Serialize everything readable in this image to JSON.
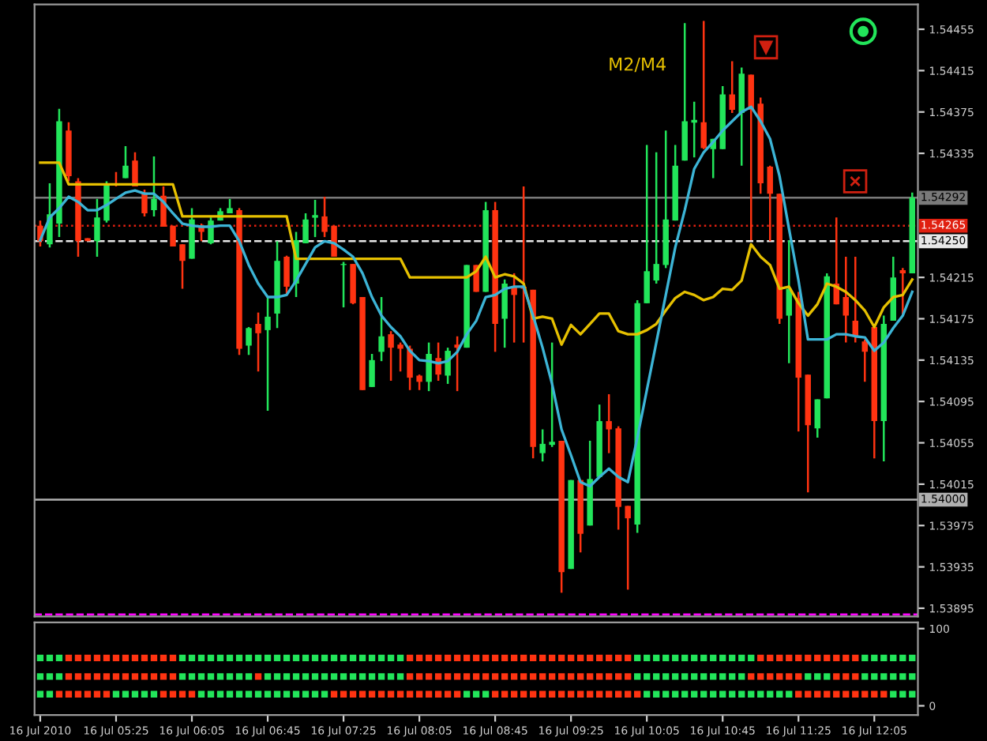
{
  "chart_data": [
    {
      "type": "candlestick",
      "tick_labels": "y",
      "legend": false,
      "grid": false,
      "x": [
        "2010-07-16T04:45",
        "2010-07-16T04:50",
        "2010-07-16T04:55",
        "2010-07-16T05:00",
        "2010-07-16T05:05",
        "2010-07-16T05:10",
        "2010-07-16T05:15",
        "2010-07-16T05:20",
        "2010-07-16T05:25",
        "2010-07-16T05:30",
        "2010-07-16T05:35",
        "2010-07-16T05:40",
        "2010-07-16T05:45",
        "2010-07-16T05:50",
        "2010-07-16T05:55",
        "2010-07-16T06:00",
        "2010-07-16T06:05",
        "2010-07-16T06:10",
        "2010-07-16T06:15",
        "2010-07-16T06:20",
        "2010-07-16T06:25",
        "2010-07-16T06:30",
        "2010-07-16T06:35",
        "2010-07-16T06:40",
        "2010-07-16T06:45",
        "2010-07-16T06:50",
        "2010-07-16T06:55",
        "2010-07-16T07:00",
        "2010-07-16T07:05",
        "2010-07-16T07:10",
        "2010-07-16T07:15",
        "2010-07-16T07:20",
        "2010-07-16T07:25",
        "2010-07-16T07:30",
        "2010-07-16T07:35",
        "2010-07-16T07:40",
        "2010-07-16T07:45",
        "2010-07-16T07:50",
        "2010-07-16T07:55",
        "2010-07-16T08:00",
        "2010-07-16T08:05",
        "2010-07-16T08:10",
        "2010-07-16T08:15",
        "2010-07-16T08:20",
        "2010-07-16T08:25",
        "2010-07-16T08:30",
        "2010-07-16T08:35",
        "2010-07-16T08:40",
        "2010-07-16T08:45",
        "2010-07-16T08:50",
        "2010-07-16T08:55",
        "2010-07-16T09:00",
        "2010-07-16T09:05",
        "2010-07-16T09:10",
        "2010-07-16T09:15",
        "2010-07-16T09:20",
        "2010-07-16T09:25",
        "2010-07-16T09:30",
        "2010-07-16T09:35",
        "2010-07-16T09:40",
        "2010-07-16T09:45",
        "2010-07-16T09:50",
        "2010-07-16T09:55",
        "2010-07-16T10:00",
        "2010-07-16T10:05",
        "2010-07-16T10:10",
        "2010-07-16T10:15",
        "2010-07-16T10:20",
        "2010-07-16T10:25",
        "2010-07-16T10:30",
        "2010-07-16T10:35",
        "2010-07-16T10:40",
        "2010-07-16T10:45",
        "2010-07-16T10:50",
        "2010-07-16T10:55",
        "2010-07-16T11:00",
        "2010-07-16T11:05",
        "2010-07-16T11:10",
        "2010-07-16T11:15",
        "2010-07-16T11:20",
        "2010-07-16T11:25",
        "2010-07-16T11:30",
        "2010-07-16T11:35",
        "2010-07-16T11:40",
        "2010-07-16T11:45",
        "2010-07-16T11:50",
        "2010-07-16T11:55",
        "2010-07-16T12:00",
        "2010-07-16T12:05",
        "2010-07-16T12:10",
        "2010-07-16T12:15",
        "2010-07-16T12:20",
        "2010-07-16T12:25"
      ],
      "ohlc": [
        [
          1.54265,
          1.5427,
          1.54245,
          1.5425
        ],
        [
          1.54247,
          1.54306,
          1.54244,
          1.54276
        ],
        [
          1.54267,
          1.54378,
          1.54254,
          1.54366
        ],
        [
          1.54357,
          1.54365,
          1.54308,
          1.54313
        ],
        [
          1.54308,
          1.54311,
          1.54235,
          1.5425
        ],
        [
          1.54253,
          1.54253,
          1.5425,
          1.5425
        ],
        [
          1.5425,
          1.54291,
          1.54235,
          1.54273
        ],
        [
          1.5427,
          1.54308,
          1.54268,
          1.54305
        ],
        [
          1.54306,
          1.54317,
          1.54303,
          1.54305
        ],
        [
          1.54311,
          1.54342,
          1.54311,
          1.54323
        ],
        [
          1.54328,
          1.54336,
          1.54303,
          1.54303
        ],
        [
          1.54297,
          1.543,
          1.54274,
          1.54277
        ],
        [
          1.5428,
          1.54332,
          1.54274,
          1.54291
        ],
        [
          1.54294,
          1.54303,
          1.54264,
          1.54264
        ],
        [
          1.54265,
          1.54265,
          1.54245,
          1.54245
        ],
        [
          1.54247,
          1.54247,
          1.54204,
          1.54231
        ],
        [
          1.54233,
          1.54282,
          1.54233,
          1.54271
        ],
        [
          1.54265,
          1.54267,
          1.5425,
          1.54259
        ],
        [
          1.54248,
          1.54273,
          1.54247,
          1.5427
        ],
        [
          1.5427,
          1.54282,
          1.5427,
          1.54279
        ],
        [
          1.54277,
          1.54291,
          1.54277,
          1.54282
        ],
        [
          1.5428,
          1.54282,
          1.5414,
          1.54146
        ],
        [
          1.54149,
          1.54167,
          1.5414,
          1.54166
        ],
        [
          1.5417,
          1.54181,
          1.54124,
          1.54161
        ],
        [
          1.54164,
          1.54196,
          1.54086,
          1.54177
        ],
        [
          1.5418,
          1.5425,
          1.54166,
          1.54231
        ],
        [
          1.54235,
          1.54236,
          1.54198,
          1.54206
        ],
        [
          1.54209,
          1.54259,
          1.54196,
          1.54251
        ],
        [
          1.54248,
          1.54277,
          1.54248,
          1.54271
        ],
        [
          1.54274,
          1.5429,
          1.54254,
          1.54274
        ],
        [
          1.54274,
          1.54293,
          1.54254,
          1.54259
        ],
        [
          1.54265,
          1.54265,
          1.54235,
          1.54235
        ],
        [
          1.54227,
          1.5423,
          1.54186,
          1.54228
        ],
        [
          1.54228,
          1.54228,
          1.54189,
          1.5419
        ],
        [
          1.54196,
          1.54196,
          1.54106,
          1.54106
        ],
        [
          1.54109,
          1.54141,
          1.54109,
          1.54135
        ],
        [
          1.54143,
          1.54196,
          1.54134,
          1.54158
        ],
        [
          1.5416,
          1.54163,
          1.54115,
          1.54147
        ],
        [
          1.5415,
          1.54152,
          1.54124,
          1.54146
        ],
        [
          1.54146,
          1.54149,
          1.54106,
          1.54118
        ],
        [
          1.5412,
          1.54121,
          1.54106,
          1.54114
        ],
        [
          1.54114,
          1.54152,
          1.54105,
          1.54141
        ],
        [
          1.54137,
          1.54152,
          1.54115,
          1.54121
        ],
        [
          1.5412,
          1.54147,
          1.54112,
          1.54144
        ],
        [
          1.5415,
          1.54158,
          1.54105,
          1.54147
        ],
        [
          1.54147,
          1.54227,
          1.54147,
          1.54227
        ],
        [
          1.54227,
          1.54227,
          1.54201,
          1.54201
        ],
        [
          1.54201,
          1.54288,
          1.54201,
          1.5428
        ],
        [
          1.5428,
          1.54288,
          1.54143,
          1.5417
        ],
        [
          1.54175,
          1.54213,
          1.54147,
          1.54209
        ],
        [
          1.54206,
          1.54219,
          1.54152,
          1.54198
        ],
        [
          1.54206,
          1.54303,
          1.54152,
          1.54204
        ],
        [
          1.54203,
          1.54203,
          1.5404,
          1.54051
        ],
        [
          1.54045,
          1.54068,
          1.54037,
          1.54054
        ],
        [
          1.54053,
          1.54152,
          1.54051,
          1.54056
        ],
        [
          1.54057,
          1.54057,
          1.5391,
          1.5393
        ],
        [
          1.53933,
          1.54019,
          1.53933,
          1.54019
        ],
        [
          1.54019,
          1.54019,
          1.53949,
          1.53967
        ],
        [
          1.53975,
          1.54057,
          1.53975,
          1.5402
        ],
        [
          1.54022,
          1.54092,
          1.54022,
          1.54076
        ],
        [
          1.54076,
          1.54102,
          1.54045,
          1.54068
        ],
        [
          1.54069,
          1.54071,
          1.53971,
          1.53993
        ],
        [
          1.53994,
          1.53994,
          1.53913,
          1.53982
        ],
        [
          1.53976,
          1.54193,
          1.53968,
          1.5419
        ],
        [
          1.5419,
          1.54343,
          1.5419,
          1.54221
        ],
        [
          1.54212,
          1.54336,
          1.54209,
          1.54228
        ],
        [
          1.54227,
          1.54357,
          1.54224,
          1.54271
        ],
        [
          1.5427,
          1.54343,
          1.5427,
          1.54323
        ],
        [
          1.54328,
          1.54461,
          1.54328,
          1.54366
        ],
        [
          1.54366,
          1.54385,
          1.54331,
          1.54366
        ],
        [
          1.54365,
          1.54463,
          1.54339,
          1.5434
        ],
        [
          1.54339,
          1.54349,
          1.54311,
          1.54349
        ],
        [
          1.54339,
          1.544,
          1.54339,
          1.54392
        ],
        [
          1.54392,
          1.54424,
          1.54374,
          1.54377
        ],
        [
          1.54374,
          1.54418,
          1.54323,
          1.54412
        ],
        [
          1.54411,
          1.54411,
          1.54251,
          1.54377
        ],
        [
          1.54383,
          1.54389,
          1.54296,
          1.54306
        ],
        [
          1.54322,
          1.54323,
          1.5425,
          1.54296
        ],
        [
          1.54296,
          1.54296,
          1.5417,
          1.54175
        ],
        [
          1.54178,
          1.54251,
          1.54132,
          1.54204
        ],
        [
          1.54195,
          1.54201,
          1.54066,
          1.54118
        ],
        [
          1.54121,
          1.54121,
          1.54007,
          1.54072
        ],
        [
          1.54069,
          1.54097,
          1.5406,
          1.54097
        ],
        [
          1.54098,
          1.54219,
          1.54098,
          1.54216
        ],
        [
          1.54209,
          1.54273,
          1.54189,
          1.54189
        ],
        [
          1.54196,
          1.54235,
          1.54152,
          1.54178
        ],
        [
          1.54173,
          1.54235,
          1.54152,
          1.54158
        ],
        [
          1.54153,
          1.54155,
          1.54114,
          1.54143
        ],
        [
          1.54167,
          1.5417,
          1.5404,
          1.54076
        ],
        [
          1.54076,
          1.54178,
          1.54037,
          1.5417
        ],
        [
          1.54173,
          1.54235,
          1.54173,
          1.54215
        ],
        [
          1.54222,
          1.54224,
          1.54178,
          1.54219
        ],
        [
          1.54219,
          1.54297,
          1.54219,
          1.54292
        ]
      ],
      "colors": [
        "#ff3311",
        "#22e55a",
        "#22e55a",
        "#ff3311",
        "#ff3311",
        "#ff3311",
        "#22e55a",
        "#22e55a",
        "#ff3311",
        "#22e55a",
        "#ff3311",
        "#ff3311",
        "#22e55a",
        "#ff3311",
        "#ff3311",
        "#ff3311",
        "#22e55a",
        "#ff3311",
        "#22e55a",
        "#22e55a",
        "#22e55a",
        "#ff3311",
        "#22e55a",
        "#ff3311",
        "#22e55a",
        "#22e55a",
        "#ff3311",
        "#22e55a",
        "#22e55a",
        "#22e55a",
        "#ff3311",
        "#ff3311",
        "#22e55a",
        "#ff3311",
        "#ff3311",
        "#22e55a",
        "#22e55a",
        "#ff3311",
        "#ff3311",
        "#ff3311",
        "#ff3311",
        "#22e55a",
        "#ff3311",
        "#22e55a",
        "#ff3311",
        "#22e55a",
        "#ff3311",
        "#22e55a",
        "#ff3311",
        "#22e55a",
        "#ff3311",
        "#ff3311",
        "#ff3311",
        "#22e55a",
        "#22e55a",
        "#ff3311",
        "#22e55a",
        "#ff3311",
        "#22e55a",
        "#22e55a",
        "#ff3311",
        "#ff3311",
        "#ff3311",
        "#22e55a",
        "#22e55a",
        "#22e55a",
        "#22e55a",
        "#22e55a",
        "#22e55a",
        "#22e55a",
        "#ff3311",
        "#22e55a",
        "#22e55a",
        "#ff3311",
        "#22e55a",
        "#ff3311",
        "#ff3311",
        "#ff3311",
        "#ff3311",
        "#22e55a",
        "#ff3311",
        "#ff3311",
        "#22e55a",
        "#22e55a",
        "#ff3311",
        "#ff3311",
        "#ff3311",
        "#ff3311",
        "#ff3311",
        "#22e55a",
        "#22e55a",
        "#ff3311",
        "#22e55a"
      ],
      "series": [
        {
          "type": "line",
          "name": "M2/M4",
          "color": "#e6c000",
          "values": [
            1.54326,
            1.54326,
            1.54326,
            1.54305,
            1.54305,
            1.54305,
            1.54305,
            1.54305,
            1.54305,
            1.54305,
            1.54305,
            1.54305,
            1.54305,
            1.54305,
            1.54305,
            1.54274,
            1.54274,
            1.54274,
            1.54274,
            1.54274,
            1.54274,
            1.54274,
            1.54274,
            1.54274,
            1.54274,
            1.54274,
            1.54274,
            1.54233,
            1.54233,
            1.54233,
            1.54233,
            1.54233,
            1.54233,
            1.54233,
            1.54233,
            1.54233,
            1.54233,
            1.54233,
            1.54233,
            1.54215,
            1.54215,
            1.54215,
            1.54215,
            1.54215,
            1.54215,
            1.54215,
            1.54221,
            1.54235,
            1.54215,
            1.54218,
            1.54216,
            1.54209,
            1.54175,
            1.54177,
            1.54175,
            1.5415,
            1.54169,
            1.5416,
            1.5417,
            1.5418,
            1.5418,
            1.54163,
            1.5416,
            1.5416,
            1.54164,
            1.5417,
            1.54183,
            1.54195,
            1.54201,
            1.54198,
            1.54193,
            1.54196,
            1.54204,
            1.54203,
            1.54212,
            1.54247,
            1.54235,
            1.54227,
            1.54204,
            1.54206,
            1.5419,
            1.54178,
            1.54189,
            1.54209,
            1.54206,
            1.54201,
            1.54193,
            1.54183,
            1.54167,
            1.54186,
            1.54196,
            1.54198,
            1.54213
          ]
        },
        {
          "type": "line",
          "color": "#3cb4d6",
          "values": [
            1.54251,
            1.54273,
            1.54282,
            1.54293,
            1.54288,
            1.5428,
            1.5428,
            1.54285,
            1.54291,
            1.54297,
            1.54299,
            1.54296,
            1.54296,
            1.54288,
            1.54277,
            1.54267,
            1.54265,
            1.54264,
            1.54264,
            1.54265,
            1.54265,
            1.5425,
            1.54227,
            1.54209,
            1.54196,
            1.54196,
            1.54198,
            1.54212,
            1.54228,
            1.54244,
            1.5425,
            1.54248,
            1.54242,
            1.54235,
            1.54219,
            1.54196,
            1.54178,
            1.54167,
            1.54158,
            1.54144,
            1.54135,
            1.54134,
            1.54132,
            1.54134,
            1.54143,
            1.5416,
            1.54173,
            1.54196,
            1.54198,
            1.54204,
            1.54206,
            1.54206,
            1.54178,
            1.54147,
            1.54112,
            1.54068,
            1.54043,
            1.54017,
            1.54013,
            1.54022,
            1.5403,
            1.54022,
            1.54017,
            1.5406,
            1.54106,
            1.54152,
            1.54198,
            1.54244,
            1.5428,
            1.5432,
            1.54336,
            1.54346,
            1.54357,
            1.54366,
            1.54375,
            1.5438,
            1.54366,
            1.54349,
            1.54313,
            1.54262,
            1.54212,
            1.54155,
            1.54155,
            1.54155,
            1.5416,
            1.5416,
            1.54158,
            1.54157,
            1.54144,
            1.54152,
            1.54166,
            1.54178,
            1.54201
          ]
        }
      ],
      "ref_lines": [
        {
          "axis": "y",
          "value": 1.54292,
          "label": "1.54292",
          "color": "#7a7a7a",
          "line_style": "solid"
        },
        {
          "axis": "y",
          "value": 1.54265,
          "label": "1.54265",
          "color": "#e02010",
          "line_style": "dotted"
        },
        {
          "axis": "y",
          "value": 1.5425,
          "label": "1.54250",
          "color": "#e8e8e8",
          "line_style": "dashed"
        },
        {
          "axis": "y",
          "value": 1.54,
          "label": "1.54000",
          "color": "#b0b0b0",
          "line_style": "solid"
        },
        {
          "axis": "y",
          "value": 1.53889,
          "color": "#ff00ff",
          "line_style": "dashed"
        }
      ],
      "xlim": [
        "2010-07-16T04:42",
        "2010-07-16T12:28"
      ],
      "ylim": [
        1.53887,
        1.54479
      ],
      "yticks": [
        1.54455,
        1.54415,
        1.54375,
        1.54335,
        1.54215,
        1.54175,
        1.54135,
        1.54095,
        1.54055,
        1.54015,
        1.53975,
        1.53935,
        1.53895
      ]
    },
    {
      "type": "scatter",
      "marker": "square",
      "legend": false,
      "grid": false,
      "xlim": [
        "2010-07-16T04:42",
        "2010-07-16T12:28"
      ],
      "xticks": [
        {
          "value": "2010-07-16T04:45",
          "label": "16 Jul 2010"
        },
        {
          "value": "2010-07-16T05:25",
          "label": "16 Jul 05:25"
        },
        {
          "value": "2010-07-16T06:05",
          "label": "16 Jul 06:05"
        },
        {
          "value": "2010-07-16T06:45",
          "label": "16 Jul 06:45"
        },
        {
          "value": "2010-07-16T07:25",
          "label": "16 Jul 07:25"
        },
        {
          "value": "2010-07-16T08:05",
          "label": "16 Jul 08:05"
        },
        {
          "value": "2010-07-16T08:45",
          "label": "16 Jul 08:45"
        },
        {
          "value": "2010-07-16T09:25",
          "label": "16 Jul 09:25"
        },
        {
          "value": "2010-07-16T10:05",
          "label": "16 Jul 10:05"
        },
        {
          "value": "2010-07-16T10:45",
          "label": "16 Jul 10:45"
        },
        {
          "value": "2010-07-16T11:25",
          "label": "16 Jul 11:25"
        },
        {
          "value": "2010-07-16T12:05",
          "label": "16 Jul 12:05"
        }
      ],
      "ylim": [
        -12,
        108
      ],
      "yticks": [
        0,
        100
      ],
      "x": [
        "2010-07-16T04:45",
        "2010-07-16T04:50",
        "2010-07-16T04:55",
        "2010-07-16T05:00",
        "2010-07-16T05:05",
        "2010-07-16T05:10",
        "2010-07-16T05:15",
        "2010-07-16T05:20",
        "2010-07-16T05:25",
        "2010-07-16T05:30",
        "2010-07-16T05:35",
        "2010-07-16T05:40",
        "2010-07-16T05:45",
        "2010-07-16T05:50",
        "2010-07-16T05:55",
        "2010-07-16T06:00",
        "2010-07-16T06:05",
        "2010-07-16T06:10",
        "2010-07-16T06:15",
        "2010-07-16T06:20",
        "2010-07-16T06:25",
        "2010-07-16T06:30",
        "2010-07-16T06:35",
        "2010-07-16T06:40",
        "2010-07-16T06:45",
        "2010-07-16T06:50",
        "2010-07-16T06:55",
        "2010-07-16T07:00",
        "2010-07-16T07:05",
        "2010-07-16T07:10",
        "2010-07-16T07:15",
        "2010-07-16T07:20",
        "2010-07-16T07:25",
        "2010-07-16T07:30",
        "2010-07-16T07:35",
        "2010-07-16T07:40",
        "2010-07-16T07:45",
        "2010-07-16T07:50",
        "2010-07-16T07:55",
        "2010-07-16T08:00",
        "2010-07-16T08:05",
        "2010-07-16T08:10",
        "2010-07-16T08:15",
        "2010-07-16T08:20",
        "2010-07-16T08:25",
        "2010-07-16T08:30",
        "2010-07-16T08:35",
        "2010-07-16T08:40",
        "2010-07-16T08:45",
        "2010-07-16T08:50",
        "2010-07-16T08:55",
        "2010-07-16T09:00",
        "2010-07-16T09:05",
        "2010-07-16T09:10",
        "2010-07-16T09:15",
        "2010-07-16T09:20",
        "2010-07-16T09:25",
        "2010-07-16T09:30",
        "2010-07-16T09:35",
        "2010-07-16T09:40",
        "2010-07-16T09:45",
        "2010-07-16T09:50",
        "2010-07-16T09:55",
        "2010-07-16T10:00",
        "2010-07-16T10:05",
        "2010-07-16T10:10",
        "2010-07-16T10:15",
        "2010-07-16T10:20",
        "2010-07-16T10:25",
        "2010-07-16T10:30",
        "2010-07-16T10:35",
        "2010-07-16T10:40",
        "2010-07-16T10:45",
        "2010-07-16T10:50",
        "2010-07-16T10:55",
        "2010-07-16T11:00",
        "2010-07-16T11:05",
        "2010-07-16T11:10",
        "2010-07-16T11:15",
        "2010-07-16T11:20",
        "2010-07-16T11:25",
        "2010-07-16T11:30",
        "2010-07-16T11:35",
        "2010-07-16T11:40",
        "2010-07-16T11:45",
        "2010-07-16T11:50",
        "2010-07-16T11:55",
        "2010-07-16T12:00",
        "2010-07-16T12:05",
        "2010-07-16T12:10",
        "2010-07-16T12:15",
        "2010-07-16T12:20",
        "2010-07-16T12:25"
      ],
      "series": [
        {
          "values": [
            62,
            62,
            62,
            62,
            62,
            62,
            62,
            62,
            62,
            62,
            62,
            62,
            62,
            62,
            62,
            62,
            62,
            62,
            62,
            62,
            62,
            62,
            62,
            62,
            62,
            62,
            62,
            62,
            62,
            62,
            62,
            62,
            62,
            62,
            62,
            62,
            62,
            62,
            62,
            62,
            62,
            62,
            62,
            62,
            62,
            62,
            62,
            62,
            62,
            62,
            62,
            62,
            62,
            62,
            62,
            62,
            62,
            62,
            62,
            62,
            62,
            62,
            62,
            62,
            62,
            62,
            62,
            62,
            62,
            62,
            62,
            62,
            62,
            62,
            62,
            62,
            62,
            62,
            62,
            62,
            62,
            62,
            62,
            62,
            62,
            62,
            62,
            62,
            62,
            62,
            62,
            62,
            62
          ],
          "colors": [
            "#22e55a",
            "#22e55a",
            "#22e55a",
            "#ff3311",
            "#ff3311",
            "#ff3311",
            "#ff3311",
            "#ff3311",
            "#ff3311",
            "#ff3311",
            "#ff3311",
            "#ff3311",
            "#ff3311",
            "#ff3311",
            "#ff3311",
            "#22e55a",
            "#22e55a",
            "#22e55a",
            "#22e55a",
            "#22e55a",
            "#22e55a",
            "#22e55a",
            "#22e55a",
            "#22e55a",
            "#22e55a",
            "#22e55a",
            "#22e55a",
            "#22e55a",
            "#22e55a",
            "#22e55a",
            "#22e55a",
            "#22e55a",
            "#22e55a",
            "#22e55a",
            "#22e55a",
            "#22e55a",
            "#22e55a",
            "#22e55a",
            "#22e55a",
            "#ff3311",
            "#ff3311",
            "#ff3311",
            "#ff3311",
            "#ff3311",
            "#ff3311",
            "#ff3311",
            "#ff3311",
            "#ff3311",
            "#ff3311",
            "#ff3311",
            "#ff3311",
            "#ff3311",
            "#ff3311",
            "#ff3311",
            "#ff3311",
            "#ff3311",
            "#ff3311",
            "#ff3311",
            "#ff3311",
            "#ff3311",
            "#ff3311",
            "#ff3311",
            "#ff3311",
            "#22e55a",
            "#22e55a",
            "#22e55a",
            "#22e55a",
            "#22e55a",
            "#22e55a",
            "#22e55a",
            "#22e55a",
            "#22e55a",
            "#22e55a",
            "#22e55a",
            "#22e55a",
            "#22e55a",
            "#ff3311",
            "#ff3311",
            "#ff3311",
            "#ff3311",
            "#ff3311",
            "#ff3311",
            "#ff3311",
            "#ff3311",
            "#ff3311",
            "#ff3311",
            "#ff3311",
            "#22e55a",
            "#22e55a",
            "#22e55a",
            "#22e55a",
            "#22e55a",
            "#22e55a"
          ]
        },
        {
          "values": [
            38,
            38,
            38,
            38,
            38,
            38,
            38,
            38,
            38,
            38,
            38,
            38,
            38,
            38,
            38,
            38,
            38,
            38,
            38,
            38,
            38,
            38,
            38,
            38,
            38,
            38,
            38,
            38,
            38,
            38,
            38,
            38,
            38,
            38,
            38,
            38,
            38,
            38,
            38,
            38,
            38,
            38,
            38,
            38,
            38,
            38,
            38,
            38,
            38,
            38,
            38,
            38,
            38,
            38,
            38,
            38,
            38,
            38,
            38,
            38,
            38,
            38,
            38,
            38,
            38,
            38,
            38,
            38,
            38,
            38,
            38,
            38,
            38,
            38,
            38,
            38,
            38,
            38,
            38,
            38,
            38,
            38,
            38,
            38,
            38,
            38,
            38,
            38,
            38,
            38,
            38,
            38,
            38
          ],
          "colors": [
            "#22e55a",
            "#22e55a",
            "#22e55a",
            "#ff3311",
            "#ff3311",
            "#ff3311",
            "#ff3311",
            "#ff3311",
            "#ff3311",
            "#ff3311",
            "#ff3311",
            "#ff3311",
            "#ff3311",
            "#ff3311",
            "#ff3311",
            "#22e55a",
            "#22e55a",
            "#22e55a",
            "#22e55a",
            "#22e55a",
            "#22e55a",
            "#22e55a",
            "#22e55a",
            "#ff3311",
            "#22e55a",
            "#22e55a",
            "#22e55a",
            "#22e55a",
            "#22e55a",
            "#22e55a",
            "#22e55a",
            "#22e55a",
            "#22e55a",
            "#22e55a",
            "#22e55a",
            "#22e55a",
            "#22e55a",
            "#22e55a",
            "#22e55a",
            "#ff3311",
            "#ff3311",
            "#ff3311",
            "#ff3311",
            "#ff3311",
            "#ff3311",
            "#ff3311",
            "#ff3311",
            "#ff3311",
            "#ff3311",
            "#ff3311",
            "#ff3311",
            "#ff3311",
            "#ff3311",
            "#ff3311",
            "#ff3311",
            "#ff3311",
            "#ff3311",
            "#ff3311",
            "#ff3311",
            "#ff3311",
            "#ff3311",
            "#ff3311",
            "#ff3311",
            "#22e55a",
            "#22e55a",
            "#22e55a",
            "#22e55a",
            "#22e55a",
            "#22e55a",
            "#22e55a",
            "#22e55a",
            "#22e55a",
            "#22e55a",
            "#22e55a",
            "#22e55a",
            "#ff3311",
            "#ff3311",
            "#ff3311",
            "#ff3311",
            "#ff3311",
            "#ff3311",
            "#22e55a",
            "#22e55a",
            "#22e55a",
            "#ff3311",
            "#ff3311",
            "#ff3311",
            "#22e55a",
            "#22e55a",
            "#22e55a",
            "#22e55a",
            "#22e55a",
            "#22e55a"
          ]
        },
        {
          "values": [
            15,
            15,
            15,
            15,
            15,
            15,
            15,
            15,
            15,
            15,
            15,
            15,
            15,
            15,
            15,
            15,
            15,
            15,
            15,
            15,
            15,
            15,
            15,
            15,
            15,
            15,
            15,
            15,
            15,
            15,
            15,
            15,
            15,
            15,
            15,
            15,
            15,
            15,
            15,
            15,
            15,
            15,
            15,
            15,
            15,
            15,
            15,
            15,
            15,
            15,
            15,
            15,
            15,
            15,
            15,
            15,
            15,
            15,
            15,
            15,
            15,
            15,
            15,
            15,
            15,
            15,
            15,
            15,
            15,
            15,
            15,
            15,
            15,
            15,
            15,
            15,
            15,
            15,
            15,
            15,
            15,
            15,
            15,
            15,
            15,
            15,
            15,
            15,
            15,
            15,
            15,
            15,
            15
          ],
          "colors": [
            "#22e55a",
            "#22e55a",
            "#ff3311",
            "#ff3311",
            "#ff3311",
            "#ff3311",
            "#ff3311",
            "#ff3311",
            "#22e55a",
            "#22e55a",
            "#22e55a",
            "#22e55a",
            "#22e55a",
            "#ff3311",
            "#ff3311",
            "#ff3311",
            "#ff3311",
            "#22e55a",
            "#22e55a",
            "#22e55a",
            "#22e55a",
            "#22e55a",
            "#22e55a",
            "#22e55a",
            "#22e55a",
            "#22e55a",
            "#22e55a",
            "#22e55a",
            "#22e55a",
            "#22e55a",
            "#22e55a",
            "#ff3311",
            "#ff3311",
            "#ff3311",
            "#ff3311",
            "#ff3311",
            "#ff3311",
            "#ff3311",
            "#ff3311",
            "#ff3311",
            "#ff3311",
            "#ff3311",
            "#ff3311",
            "#ff3311",
            "#ff3311",
            "#22e55a",
            "#22e55a",
            "#22e55a",
            "#ff3311",
            "#ff3311",
            "#ff3311",
            "#ff3311",
            "#ff3311",
            "#ff3311",
            "#ff3311",
            "#ff3311",
            "#ff3311",
            "#ff3311",
            "#ff3311",
            "#ff3311",
            "#ff3311",
            "#ff3311",
            "#ff3311",
            "#ff3311",
            "#22e55a",
            "#22e55a",
            "#22e55a",
            "#22e55a",
            "#22e55a",
            "#22e55a",
            "#22e55a",
            "#22e55a",
            "#22e55a",
            "#22e55a",
            "#22e55a",
            "#22e55a",
            "#22e55a",
            "#22e55a",
            "#22e55a",
            "#22e55a",
            "#ff3311",
            "#ff3311",
            "#ff3311",
            "#ff3311",
            "#ff3311",
            "#ff3311",
            "#ff3311",
            "#ff3311",
            "#ff3311",
            "#ff3311",
            "#22e55a",
            "#22e55a",
            "#22e55a"
          ]
        }
      ]
    }
  ]
}
